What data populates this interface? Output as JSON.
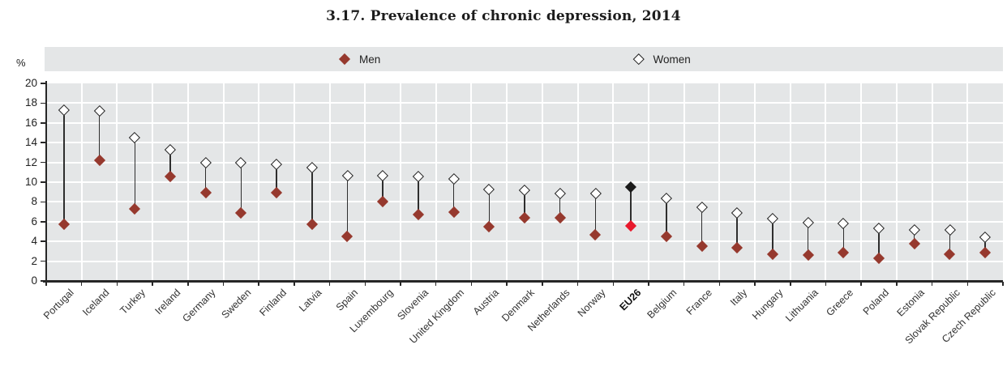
{
  "title": "3.17. Prevalence of chronic depression, 2014",
  "y_axis": {
    "unit_label": "%",
    "min": 0,
    "max": 20,
    "step": 2
  },
  "legend": {
    "men_label": "Men",
    "women_label": "Women",
    "position": "top-band"
  },
  "colors": {
    "men_marker": "#96392e",
    "women_marker_fill": "#ffffff",
    "women_marker_border": "#1f1f1f",
    "highlight_men_marker": "#e8192c",
    "highlight_women_marker": "#1a1a1a",
    "plot_background": "#e4e6e7",
    "gridline": "#ffffff",
    "axis": "#262626",
    "connector": "#2e2e2e"
  },
  "chart_data": {
    "type": "scatter",
    "subtype": "dumbbell",
    "title": "3.17. Prevalence of chronic depression, 2014",
    "ylabel": "%",
    "ylim": [
      0,
      20
    ],
    "ytick_step": 2,
    "grid": true,
    "legend_position": "top",
    "categories": [
      "Portugal",
      "Iceland",
      "Turkey",
      "Ireland",
      "Germany",
      "Sweden",
      "Finland",
      "Latvia",
      "Spain",
      "Luxembourg",
      "Slovenia",
      "United Kingdom",
      "Austria",
      "Denmark",
      "Netherlands",
      "Norway",
      "EU26",
      "Belgium",
      "France",
      "Italy",
      "Hungary",
      "Lithuania",
      "Greece",
      "Poland",
      "Estonia",
      "Slovak Republic",
      "Czech Republic"
    ],
    "series": [
      {
        "name": "Men",
        "values": [
          5.7,
          12.2,
          7.3,
          10.6,
          8.9,
          6.9,
          8.9,
          5.7,
          4.5,
          8.0,
          6.7,
          7.0,
          5.5,
          6.4,
          6.4,
          4.7,
          5.6,
          4.5,
          3.5,
          3.4,
          2.7,
          2.6,
          2.9,
          2.3,
          3.8,
          2.7,
          2.9
        ]
      },
      {
        "name": "Women",
        "values": [
          17.3,
          17.2,
          14.5,
          13.3,
          12.0,
          12.0,
          11.8,
          11.5,
          10.7,
          10.7,
          10.6,
          10.3,
          9.3,
          9.2,
          8.9,
          8.9,
          9.5,
          8.4,
          7.5,
          6.9,
          6.3,
          5.9,
          5.8,
          5.3,
          5.2,
          5.2,
          4.4
        ]
      }
    ],
    "highlight_category": "EU26"
  }
}
